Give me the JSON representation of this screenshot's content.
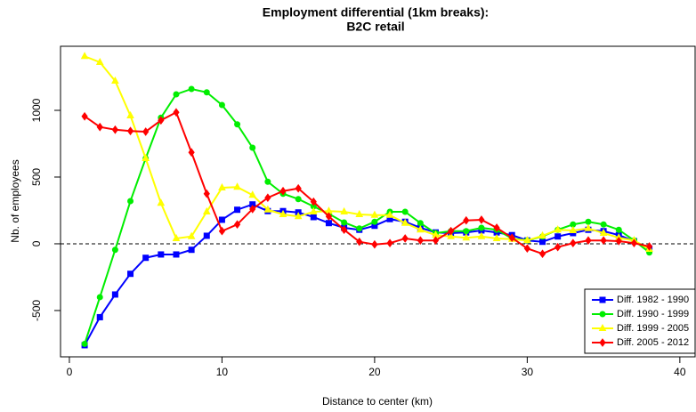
{
  "chart_data": {
    "type": "line",
    "title": "Employment differential (1km breaks):",
    "subtitle": "B2C retail",
    "x_label": "Distance to center (km)",
    "y_label": "Nb. of employees",
    "x": [
      1,
      2,
      3,
      4,
      5,
      6,
      7,
      8,
      9,
      10,
      11,
      12,
      13,
      14,
      15,
      16,
      17,
      18,
      19,
      20,
      21,
      22,
      23,
      24,
      25,
      26,
      27,
      28,
      29,
      30,
      31,
      32,
      33,
      34,
      35,
      36,
      37,
      38
    ],
    "series": [
      {
        "name": "Diff. 1982 - 1990",
        "color": "#0000ff",
        "marker": "square",
        "values": [
          -760,
          -550,
          -380,
          -225,
          -105,
          -80,
          -80,
          -45,
          60,
          180,
          255,
          295,
          245,
          245,
          235,
          200,
          155,
          120,
          105,
          135,
          185,
          165,
          120,
          85,
          80,
          85,
          100,
          85,
          65,
          25,
          15,
          55,
          80,
          105,
          95,
          65,
          20,
          -35
        ]
      },
      {
        "name": "Diff. 1990 - 1999",
        "color": "#00ee00",
        "marker": "circle",
        "values": [
          -750,
          -400,
          -45,
          320,
          640,
          945,
          1120,
          1160,
          1135,
          1040,
          895,
          720,
          465,
          375,
          335,
          280,
          225,
          160,
          115,
          165,
          240,
          240,
          155,
          80,
          95,
          95,
          120,
          105,
          40,
          25,
          55,
          105,
          145,
          165,
          145,
          105,
          25,
          -65
        ]
      },
      {
        "name": "Diff. 1999 - 2005",
        "color": "#ffff00",
        "marker": "triangle",
        "values": [
          1405,
          1360,
          1220,
          960,
          640,
          305,
          40,
          55,
          240,
          420,
          425,
          365,
          255,
          220,
          205,
          240,
          245,
          240,
          220,
          215,
          215,
          155,
          105,
          65,
          55,
          45,
          55,
          40,
          35,
          25,
          60,
          105,
          100,
          115,
          80,
          45,
          25,
          -40
        ]
      },
      {
        "name": "Diff. 2005 - 2012",
        "color": "#ff0000",
        "marker": "diamond",
        "values": [
          955,
          875,
          855,
          845,
          840,
          925,
          985,
          685,
          375,
          95,
          145,
          260,
          345,
          395,
          415,
          315,
          205,
          105,
          15,
          -5,
          5,
          40,
          25,
          25,
          95,
          175,
          180,
          120,
          45,
          -35,
          -75,
          -25,
          5,
          25,
          25,
          20,
          5,
          -20
        ]
      }
    ],
    "hline": 0,
    "xlim": [
      -0.58,
      41
    ],
    "ylim": [
      -847,
      1480
    ],
    "xticks": [
      0,
      10,
      20,
      30,
      40
    ],
    "yticks": [
      -500,
      0,
      500,
      1000
    ],
    "legend": "bottom-right"
  }
}
